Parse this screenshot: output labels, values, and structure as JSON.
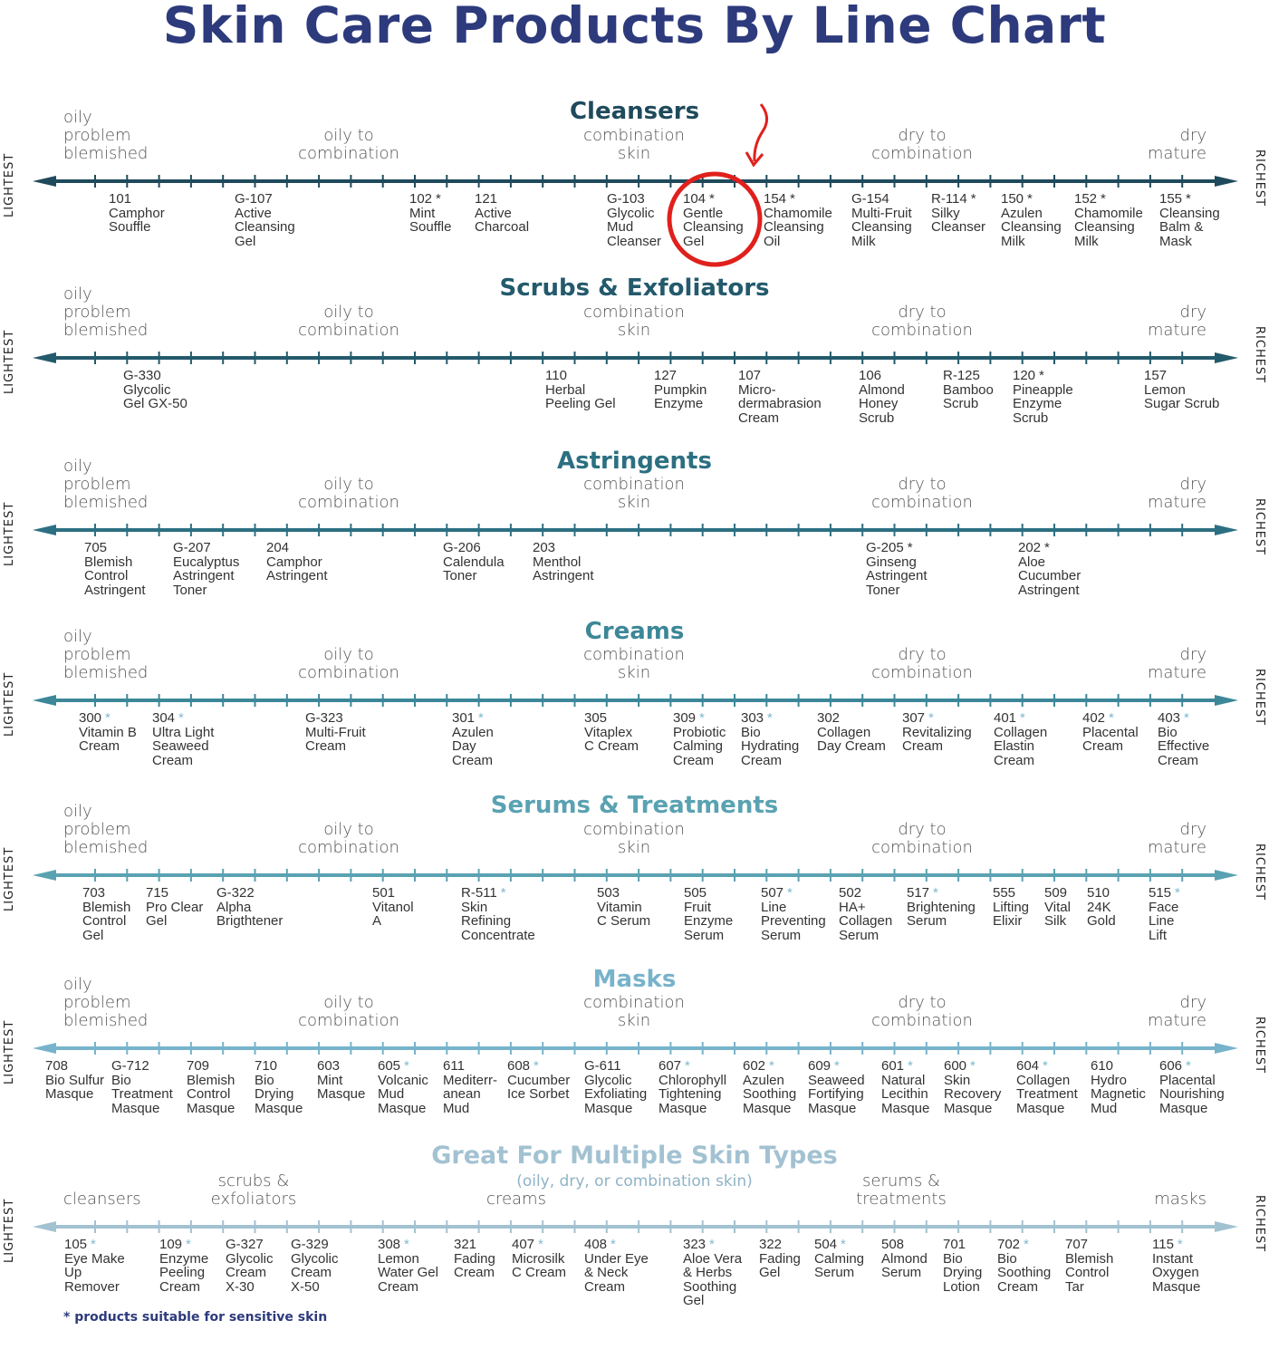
{
  "title": "Skin Care Products By Line Chart",
  "side_labels": {
    "left": "LIGHTEST",
    "right": "RICHEST"
  },
  "skin_labels": {
    "oily": "oily problem blemished",
    "oily_combo": "oily to combination",
    "combo": "combination skin",
    "dry_combo": "dry to combination",
    "dry": "dry mature"
  },
  "sections": [
    {
      "title": "Cleansers",
      "color": "#1f4a5c",
      "items": [
        {
          "code": "101",
          "star": false,
          "name": "Camphor Souffle"
        },
        {
          "code": "G-107",
          "star": false,
          "name": "Active Cleansing Gel"
        },
        {
          "code": "102",
          "star": true,
          "name": "Mint Souffle"
        },
        {
          "code": "121",
          "star": false,
          "name": "Active Charcoal"
        },
        {
          "code": "G-103",
          "star": false,
          "name": "Glycolic Mud Cleanser"
        },
        {
          "code": "104",
          "star": true,
          "name": "Gentle Cleansing Gel"
        },
        {
          "code": "154",
          "star": true,
          "name": "Chamomile Cleansing Oil"
        },
        {
          "code": "G-154",
          "star": false,
          "name": "Multi-Fruit Cleansing Milk"
        },
        {
          "code": "R-114",
          "star": true,
          "name": "Silky Cleanser"
        },
        {
          "code": "150",
          "star": true,
          "name": "Azulen Cleansing Milk"
        },
        {
          "code": "152",
          "star": true,
          "name": "Chamomile Cleansing Milk"
        },
        {
          "code": "155",
          "star": true,
          "name": "Cleansing Balm & Mask"
        }
      ]
    },
    {
      "title": "Scrubs & Exfoliators",
      "color": "#235a6c",
      "items": [
        {
          "code": "G-330",
          "star": false,
          "name": "Glycolic Gel GX-50"
        },
        {
          "code": "110",
          "star": false,
          "name": "Herbal Peeling Gel"
        },
        {
          "code": "127",
          "star": false,
          "name": "Pumpkin Enzyme"
        },
        {
          "code": "107",
          "star": false,
          "name": "Micro- dermabrasion Cream"
        },
        {
          "code": "106",
          "star": false,
          "name": "Almond Honey Scrub"
        },
        {
          "code": "R-125",
          "star": false,
          "name": "Bamboo Scrub"
        },
        {
          "code": "120",
          "star": true,
          "name": "Pineapple Enzyme Scrub"
        },
        {
          "code": "157",
          "star": false,
          "name": "Lemon Sugar Scrub"
        }
      ]
    },
    {
      "title": "Astringents",
      "color": "#2c6f82",
      "items": [
        {
          "code": "705",
          "star": false,
          "name": "Blemish Control Astringent"
        },
        {
          "code": "G-207",
          "star": false,
          "name": "Eucalyptus Astringent Toner"
        },
        {
          "code": "204",
          "star": false,
          "name": "Camphor Astringent"
        },
        {
          "code": "G-206",
          "star": false,
          "name": "Calendula Toner"
        },
        {
          "code": "203",
          "star": false,
          "name": "Menthol Astringent"
        },
        {
          "code": "G-205",
          "star": true,
          "name": "Ginseng Astringent Toner"
        },
        {
          "code": "202",
          "star": true,
          "name": "Aloe Cucumber Astringent"
        }
      ]
    },
    {
      "title": "Creams",
      "color": "#3c8798",
      "items": [
        {
          "code": "300",
          "star": true,
          "name": "Vitamin B Cream"
        },
        {
          "code": "304",
          "star": true,
          "name": "Ultra Light Seaweed Cream"
        },
        {
          "code": "G-323",
          "star": false,
          "name": "Multi-Fruit Cream"
        },
        {
          "code": "301",
          "star": true,
          "name": "Azulen Day Cream"
        },
        {
          "code": "305",
          "star": false,
          "name": "Vitaplex C Cream"
        },
        {
          "code": "309",
          "star": true,
          "name": "Probiotic Calming Cream"
        },
        {
          "code": "303",
          "star": true,
          "name": "Bio Hydrating Cream"
        },
        {
          "code": "302",
          "star": false,
          "name": "Collagen Day Cream"
        },
        {
          "code": "307",
          "star": true,
          "name": "Revitalizing Cream"
        },
        {
          "code": "401",
          "star": true,
          "name": "Collagen Elastin Cream"
        },
        {
          "code": "402",
          "star": true,
          "name": "Placental Cream"
        },
        {
          "code": "403",
          "star": true,
          "name": "Bio Effective Cream"
        }
      ]
    },
    {
      "title": "Serums & Treatments",
      "color": "#5aa2b2",
      "items": [
        {
          "code": "703",
          "star": false,
          "name": "Blemish Control Gel"
        },
        {
          "code": "715",
          "star": false,
          "name": "Pro Clear Gel"
        },
        {
          "code": "G-322",
          "star": false,
          "name": "Alpha Brigthtener"
        },
        {
          "code": "501",
          "star": false,
          "name": "Vitanol A"
        },
        {
          "code": "R-511",
          "star": true,
          "name": "Skin Refining Concentrate"
        },
        {
          "code": "503",
          "star": false,
          "name": "Vitamin C Serum"
        },
        {
          "code": "505",
          "star": false,
          "name": "Fruit Enzyme Serum"
        },
        {
          "code": "507",
          "star": true,
          "name": "Line Preventing Serum"
        },
        {
          "code": "502",
          "star": false,
          "name": "HA+ Collagen Serum"
        },
        {
          "code": "517",
          "star": true,
          "name": "Brightening Serum"
        },
        {
          "code": "555",
          "star": false,
          "name": "Lifting Elixir"
        },
        {
          "code": "509",
          "star": false,
          "name": "Vital Silk"
        },
        {
          "code": "510",
          "star": false,
          "name": "24K Gold"
        },
        {
          "code": "515",
          "star": true,
          "name": "Face Line Lift"
        }
      ]
    },
    {
      "title": "Masks",
      "color": "#77b3cb",
      "items": [
        {
          "code": "708",
          "star": false,
          "name": "Bio Sulfur Masque"
        },
        {
          "code": "G-712",
          "star": false,
          "name": "Bio Treatment Masque"
        },
        {
          "code": "709",
          "star": false,
          "name": "Blemish Control Masque"
        },
        {
          "code": "710",
          "star": false,
          "name": "Bio Drying Masque"
        },
        {
          "code": "603",
          "star": false,
          "name": "Mint Masque"
        },
        {
          "code": "605",
          "star": true,
          "name": "Volcanic Mud Masque"
        },
        {
          "code": "611",
          "star": false,
          "name": "Mediterr- anean Mud"
        },
        {
          "code": "608",
          "star": true,
          "name": "Cucumber Ice Sorbet"
        },
        {
          "code": "G-611",
          "star": false,
          "name": "Glycolic Exfoliating Masque"
        },
        {
          "code": "607",
          "star": true,
          "name": "Chlorophyll Tightening Masque"
        },
        {
          "code": "602",
          "star": true,
          "name": "Azulen Soothing Masque"
        },
        {
          "code": "609",
          "star": true,
          "name": "Seaweed Fortifying Masque"
        },
        {
          "code": "601",
          "star": true,
          "name": "Natural Lecithin Masque"
        },
        {
          "code": "600",
          "star": true,
          "name": "Skin Recovery Masque"
        },
        {
          "code": "604",
          "star": true,
          "name": "Collagen Treatment Masque"
        },
        {
          "code": "610",
          "star": false,
          "name": "Hydro Magnetic Mud"
        },
        {
          "code": "606",
          "star": true,
          "name": "Placental Nourishing Masque"
        }
      ]
    },
    {
      "title": "Great For Multiple Skin Types",
      "subtitle": "(oily, dry, or combination skin)",
      "color": "#a2c2d2",
      "categories": [
        "cleansers",
        "scrubs & exfoliators",
        "creams",
        "serums & treatments",
        "masks"
      ],
      "items": [
        {
          "code": "105",
          "star": true,
          "name": "Eye Make Up Remover"
        },
        {
          "code": "109",
          "star": true,
          "name": "Enzyme Peeling Cream"
        },
        {
          "code": "G-327",
          "star": false,
          "name": "Glycolic Cream X-30"
        },
        {
          "code": "G-329",
          "star": false,
          "name": "Glycolic Cream X-50"
        },
        {
          "code": "308",
          "star": true,
          "name": "Lemon Water Gel Cream"
        },
        {
          "code": "321",
          "star": false,
          "name": "Fading Cream"
        },
        {
          "code": "407",
          "star": true,
          "name": "Microsilk C Cream"
        },
        {
          "code": "408",
          "star": true,
          "name": "Under Eye & Neck Cream"
        },
        {
          "code": "323",
          "star": true,
          "name": "Aloe Vera & Herbs Soothing Gel"
        },
        {
          "code": "322",
          "star": false,
          "name": "Fading Gel"
        },
        {
          "code": "504",
          "star": true,
          "name": "Calming Serum"
        },
        {
          "code": "508",
          "star": false,
          "name": "Almond Serum"
        },
        {
          "code": "701",
          "star": false,
          "name": "Bio Drying Lotion"
        },
        {
          "code": "702",
          "star": true,
          "name": "Bio Soothing Cream"
        },
        {
          "code": "707",
          "star": false,
          "name": "Blemish Control Tar"
        },
        {
          "code": "115",
          "star": true,
          "name": "Instant Oxygen Masque"
        }
      ]
    }
  ],
  "highlight": {
    "item": "104 Gentle Cleansing Gel",
    "color": "#e0201c"
  },
  "footnote": "* products suitable for sensitive skin",
  "title_color": "#2d3a7c"
}
